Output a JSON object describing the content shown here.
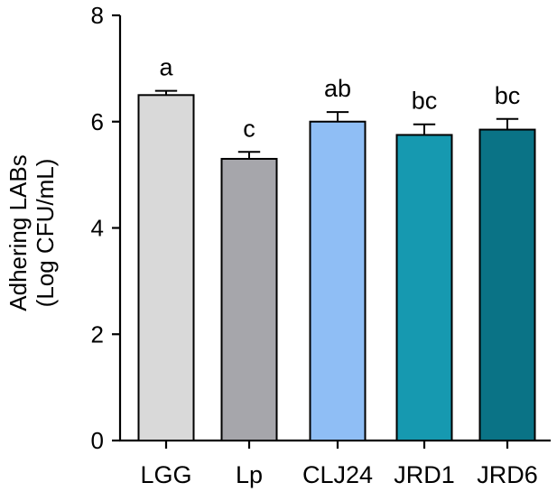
{
  "chart_data": {
    "type": "bar",
    "title": "",
    "xlabel": "",
    "ylabel": [
      "Adhering LABs",
      "(Log CFU/mL)"
    ],
    "ylim": [
      0,
      8
    ],
    "yticks": [
      "0",
      "2",
      "4",
      "6",
      "8"
    ],
    "yticks_values": [
      0,
      2,
      4,
      6,
      8
    ],
    "categories": [
      "LGG",
      "Lp",
      "CLJ24",
      "JRD1",
      "JRD6"
    ],
    "values": [
      6.5,
      5.3,
      6.0,
      5.75,
      5.85
    ],
    "errors": [
      0.08,
      0.13,
      0.18,
      0.2,
      0.2
    ],
    "significance": [
      "a",
      "c",
      "ab",
      "bc",
      "bc"
    ],
    "colors": [
      "#d9d9d9",
      "#a6a6ab",
      "#8fbef5",
      "#1699b0",
      "#0a7386"
    ],
    "grid": false,
    "legend": "none"
  }
}
